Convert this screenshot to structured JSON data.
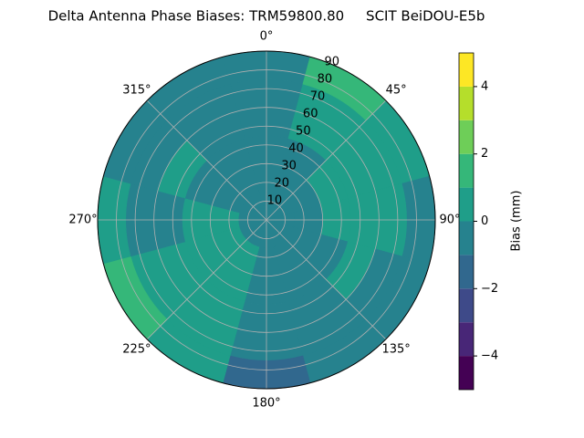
{
  "chart_data": {
    "type": "polar-contour",
    "title": "Delta Antenna Phase Biases: TRM59800.80     SCIT BeiDOU-E5b",
    "azimuths": [
      0,
      30,
      60,
      90,
      120,
      150,
      180,
      210,
      240,
      270,
      300,
      330
    ],
    "zenith_edges": [
      0,
      15,
      30,
      45,
      60,
      75,
      90
    ],
    "values": [
      [
        -0.5,
        -0.5,
        -0.5,
        -0.5,
        -0.5,
        -0.5
      ],
      [
        -0.5,
        -0.5,
        -0.5,
        0.5,
        0.5,
        1.5
      ],
      [
        -0.5,
        -0.5,
        0.5,
        0.5,
        0.5,
        0.5
      ],
      [
        -0.5,
        -0.5,
        0.5,
        0.5,
        0.5,
        -0.5
      ],
      [
        -0.5,
        -0.5,
        -0.5,
        0.5,
        -0.5,
        -0.5
      ],
      [
        -0.5,
        -0.5,
        -0.5,
        -0.5,
        -0.5,
        -0.5
      ],
      [
        -0.5,
        -0.5,
        -0.5,
        -0.5,
        -0.5,
        -1.5
      ],
      [
        -0.5,
        0.5,
        0.5,
        0.5,
        0.5,
        0.5
      ],
      [
        -0.5,
        0.5,
        0.5,
        0.5,
        0.5,
        1.5
      ],
      [
        -0.5,
        0.5,
        0.5,
        -0.5,
        -0.5,
        0.5
      ],
      [
        -0.5,
        -0.5,
        -0.5,
        0.5,
        -0.5,
        -0.5
      ],
      [
        -0.5,
        -0.5,
        -0.5,
        -0.5,
        -0.5,
        -0.5
      ]
    ],
    "rlim": [
      0,
      90
    ],
    "rticks": [
      10,
      20,
      30,
      40,
      50,
      60,
      70,
      80,
      90
    ],
    "thetaticks": [
      {
        "value": 0,
        "label": "0°"
      },
      {
        "value": 45,
        "label": "45°"
      },
      {
        "value": 90,
        "label": "90°"
      },
      {
        "value": 135,
        "label": "135°"
      },
      {
        "value": 180,
        "label": "180°"
      },
      {
        "value": 225,
        "label": "225°"
      },
      {
        "value": 270,
        "label": "270°"
      },
      {
        "value": 315,
        "label": "315°"
      }
    ],
    "levels": [
      -5,
      -4,
      -3,
      -2,
      -1,
      0,
      1,
      2,
      3,
      4,
      5
    ],
    "colors": [
      "#440154",
      "#482677",
      "#3e4a89",
      "#31688e",
      "#26828e",
      "#1f9e89",
      "#35b779",
      "#6ece58",
      "#b5de2b",
      "#fde725"
    ],
    "clim": [
      -5,
      5
    ],
    "cticks": [
      {
        "value": -4,
        "label": "−4"
      },
      {
        "value": -2,
        "label": "−2"
      },
      0,
      2,
      4
    ],
    "colorbar_label": "Bias (mm)",
    "grid": true
  }
}
